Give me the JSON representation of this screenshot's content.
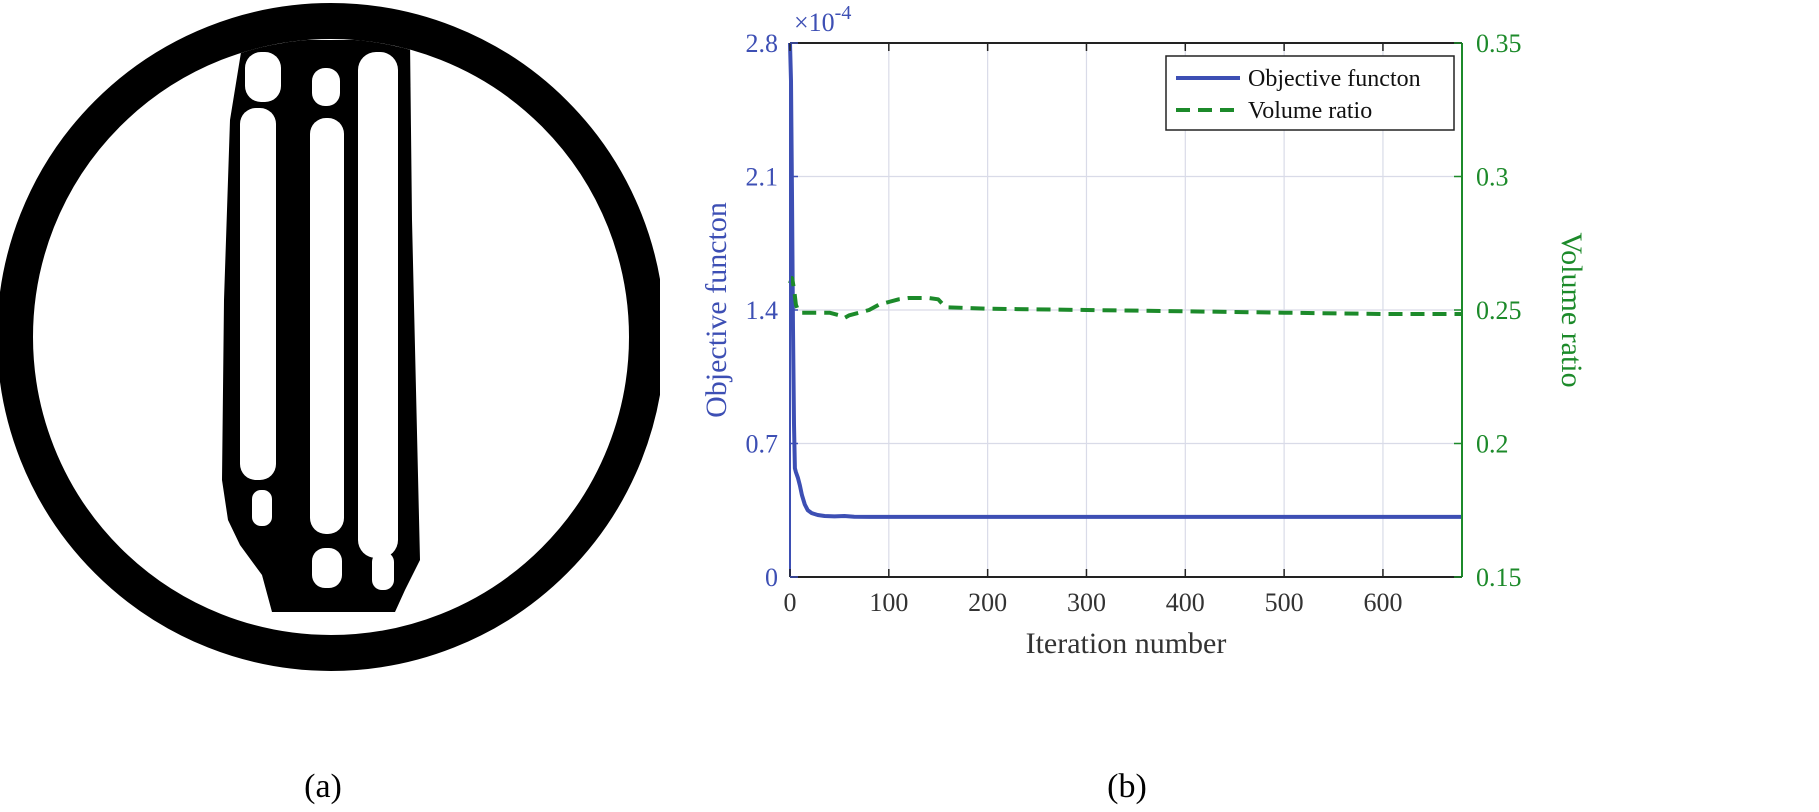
{
  "captions": {
    "a": "(a)",
    "b": "(b)"
  },
  "colors": {
    "objective": "#3d4fb4",
    "volume": "#1c8a2a",
    "structure": "#000000",
    "grid": "#d9dbe8"
  },
  "chart_data": {
    "type": "line",
    "xlabel": "Iteration number",
    "ylabel_left": "Objective functon",
    "ylabel_right": "Volume ratio",
    "exponent_base": "×10",
    "exponent_power": "-4",
    "xlim": [
      0,
      680
    ],
    "ylim_left": [
      0,
      2.8
    ],
    "ylim_right": [
      0.15,
      0.35
    ],
    "xticks": [
      0,
      100,
      200,
      300,
      400,
      500,
      600
    ],
    "yticks_left": [
      0,
      0.7,
      1.4,
      2.1,
      2.8
    ],
    "yticks_right": [
      0.15,
      0.2,
      0.25,
      0.3,
      0.35
    ],
    "grid": true,
    "legend_position": "top-right",
    "series": [
      {
        "name": "Objective functon",
        "axis": "left",
        "style": "solid",
        "x": [
          0,
          1,
          2,
          3,
          4,
          5,
          6,
          8,
          10,
          12,
          15,
          18,
          22,
          28,
          35,
          45,
          55,
          65,
          80,
          100,
          150,
          200,
          300,
          400,
          500,
          600,
          680
        ],
        "y": [
          2.8,
          2.6,
          2.0,
          1.3,
          0.8,
          0.57,
          0.55,
          0.52,
          0.48,
          0.43,
          0.38,
          0.35,
          0.335,
          0.325,
          0.32,
          0.318,
          0.32,
          0.316,
          0.315,
          0.315,
          0.315,
          0.315,
          0.315,
          0.315,
          0.315,
          0.315,
          0.315
        ]
      },
      {
        "name": "Volume ratio",
        "axis": "right",
        "style": "dashed",
        "x": [
          0,
          2,
          4,
          6,
          8,
          10,
          15,
          25,
          40,
          50,
          55,
          60,
          70,
          80,
          90,
          100,
          110,
          120,
          130,
          140,
          150,
          155,
          160,
          200,
          300,
          400,
          500,
          600,
          680
        ],
        "y": [
          0.26,
          0.262,
          0.258,
          0.252,
          0.25,
          0.249,
          0.249,
          0.249,
          0.249,
          0.248,
          0.247,
          0.248,
          0.249,
          0.25,
          0.252,
          0.253,
          0.254,
          0.2545,
          0.2545,
          0.2545,
          0.254,
          0.252,
          0.251,
          0.2505,
          0.25,
          0.2495,
          0.249,
          0.2485,
          0.2485
        ]
      }
    ]
  }
}
